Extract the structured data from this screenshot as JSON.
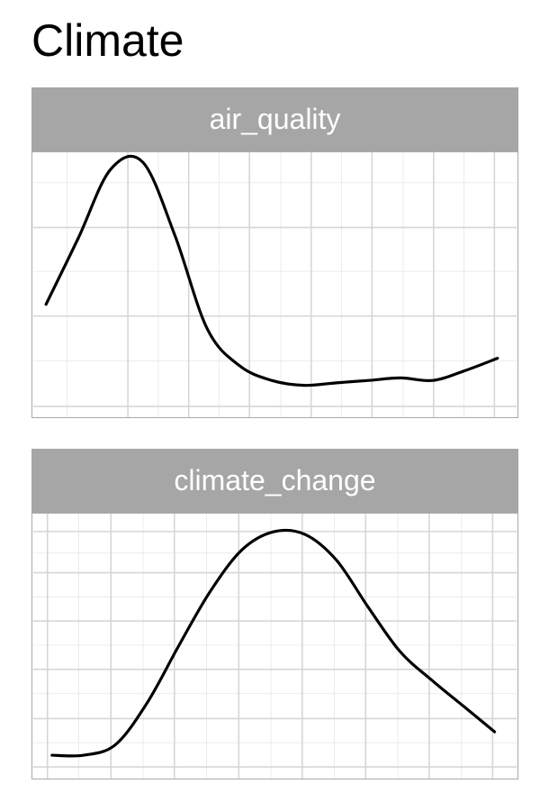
{
  "title": "Climate",
  "chart_data": [
    {
      "type": "line",
      "facet_label": "air_quality",
      "x": [
        0,
        0.5,
        1,
        1.5,
        2,
        2.5,
        3,
        3.5,
        4,
        4.5,
        5,
        5.5,
        6,
        6.5,
        7
      ],
      "y": [
        0.38,
        0.65,
        0.93,
        0.96,
        0.66,
        0.28,
        0.13,
        0.07,
        0.05,
        0.06,
        0.07,
        0.08,
        0.07,
        0.11,
        0.16
      ],
      "xlim": [
        -0.2,
        7.3
      ],
      "ylim": [
        -0.08,
        1.0
      ],
      "grid": true,
      "color": "#000000"
    },
    {
      "type": "line",
      "facet_label": "climate_change",
      "x": [
        0,
        0.5,
        1,
        1.5,
        2,
        2.5,
        3,
        3.5,
        4,
        4.5,
        5,
        5.5,
        6,
        6.5,
        7
      ],
      "y": [
        0.09,
        0.09,
        0.13,
        0.29,
        0.51,
        0.72,
        0.88,
        0.95,
        0.94,
        0.84,
        0.66,
        0.49,
        0.38,
        0.28,
        0.18
      ],
      "xlim": [
        -0.3,
        7.35
      ],
      "ylim": [
        0.0,
        1.02
      ],
      "grid": true,
      "color": "#000000"
    }
  ]
}
